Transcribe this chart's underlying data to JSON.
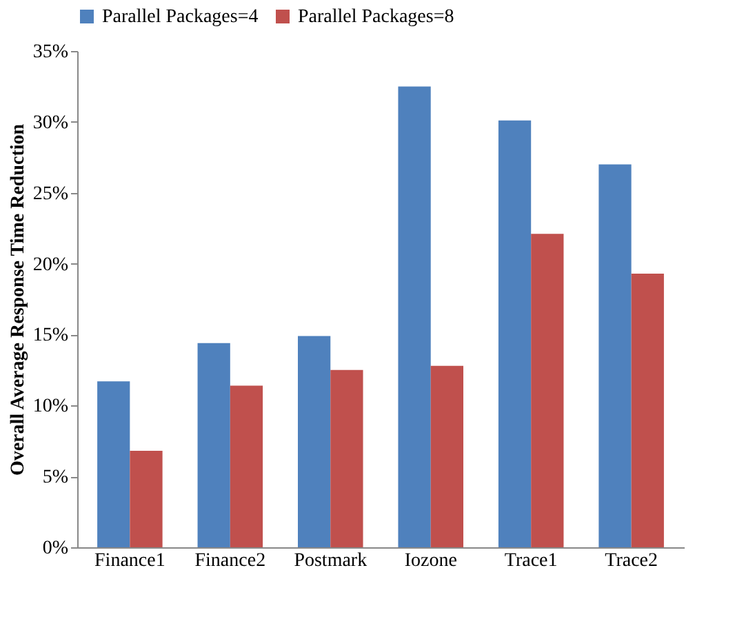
{
  "chart_data": {
    "type": "bar",
    "ylabel": "Overall Average Response Time Reduction",
    "categories": [
      "Finance1",
      "Finance2",
      "Postmark",
      "Iozone",
      "Trace1",
      "Trace2"
    ],
    "series": [
      {
        "name": "Parallel Packages=4",
        "color": "#4f81bd",
        "values": [
          11.7,
          14.4,
          14.9,
          32.5,
          30.1,
          27.0
        ]
      },
      {
        "name": "Parallel Packages=8",
        "color": "#c0504d",
        "values": [
          6.8,
          11.4,
          12.5,
          12.8,
          22.1,
          19.3
        ]
      }
    ],
    "ylim": [
      0,
      35
    ],
    "yticks": [
      {
        "value": 0,
        "label": "0%"
      },
      {
        "value": 5,
        "label": "5%"
      },
      {
        "value": 10,
        "label": "10%"
      },
      {
        "value": 15,
        "label": "15%"
      },
      {
        "value": 20,
        "label": "20%"
      },
      {
        "value": 25,
        "label": "25%"
      },
      {
        "value": 30,
        "label": "30%"
      },
      {
        "value": 35,
        "label": "35%"
      }
    ],
    "grid": false,
    "legend": "top"
  }
}
